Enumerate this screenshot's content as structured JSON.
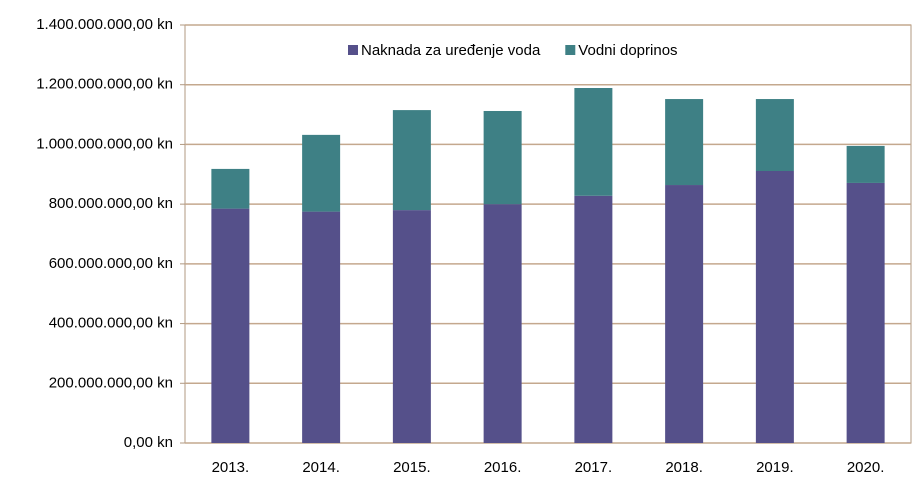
{
  "chart_data": {
    "type": "stacked_bar",
    "categories": [
      "2013.",
      "2014.",
      "2015.",
      "2016.",
      "2017.",
      "2018.",
      "2019.",
      "2020."
    ],
    "series": [
      {
        "name": "Naknada za uređenje voda",
        "color": "#55508a",
        "values": [
          785000000,
          775000000,
          780000000,
          800000000,
          828000000,
          864000000,
          911000000,
          871000000
        ]
      },
      {
        "name": "Vodni doprinos",
        "color": "#3e8085",
        "values": [
          133000000,
          257000000,
          335000000,
          312000000,
          361000000,
          288000000,
          241000000,
          124000000
        ]
      }
    ],
    "ylim": [
      0,
      1400000000
    ],
    "yticks": [
      {
        "value": 0,
        "label": "0,00 kn"
      },
      {
        "value": 200000000,
        "label": "200.000.000,00 kn"
      },
      {
        "value": 400000000,
        "label": "400.000.000,00 kn"
      },
      {
        "value": 600000000,
        "label": "600.000.000,00 kn"
      },
      {
        "value": 800000000,
        "label": "800.000.000,00 kn"
      },
      {
        "value": 1000000000,
        "label": "1.000.000.000,00 kn"
      },
      {
        "value": 1200000000,
        "label": "1.200.000.000,00 kn"
      },
      {
        "value": 1400000000,
        "label": "1.400.000.000,00 kn"
      }
    ],
    "grid": true,
    "legend": "top"
  }
}
